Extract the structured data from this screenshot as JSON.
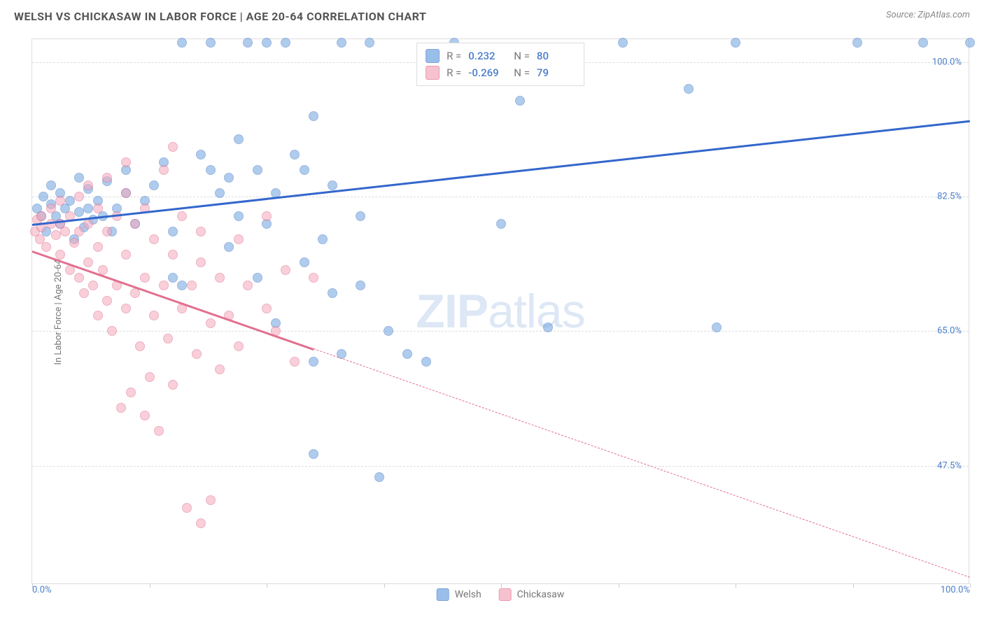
{
  "title": "WELSH VS CHICKASAW IN LABOR FORCE | AGE 20-64 CORRELATION CHART",
  "source": "Source: ZipAtlas.com",
  "y_axis_label": "In Labor Force | Age 20-64",
  "watermark_prefix": "ZIP",
  "watermark_suffix": "atlas",
  "chart": {
    "type": "scatter",
    "background_color": "#ffffff",
    "border_color": "#dddddd",
    "grid_color": "#dddddd",
    "xlim": [
      0,
      100
    ],
    "ylim": [
      32,
      103
    ],
    "y_ticks": [
      {
        "value": 100.0,
        "label": "100.0%"
      },
      {
        "value": 82.5,
        "label": "82.5%"
      },
      {
        "value": 65.0,
        "label": "65.0%"
      },
      {
        "value": 47.5,
        "label": "47.5%"
      }
    ],
    "x_tick_positions": [
      0,
      12.5,
      25,
      37.5,
      50,
      62.5,
      75,
      87.5,
      100
    ],
    "x_tick_labels": [
      {
        "pos": 0,
        "label": "0.0%"
      },
      {
        "pos": 100,
        "label": "100.0%"
      }
    ],
    "point_radius": 7,
    "point_opacity": 0.55,
    "series": [
      {
        "name": "Welsh",
        "color": "#6fa3e0",
        "stroke": "#4a7ec9",
        "line_color": "#3366cc",
        "R": "0.232",
        "N": "80",
        "trend": {
          "x1": 0,
          "y1": 79,
          "x2": 100,
          "y2": 92.5,
          "solid_end_x": 100
        },
        "points": [
          [
            0.5,
            81
          ],
          [
            1,
            80
          ],
          [
            1.2,
            82.5
          ],
          [
            1.5,
            78
          ],
          [
            2,
            81.5
          ],
          [
            2,
            84
          ],
          [
            2.5,
            80
          ],
          [
            3,
            79
          ],
          [
            3,
            83
          ],
          [
            3.5,
            81
          ],
          [
            4,
            82
          ],
          [
            4.5,
            77
          ],
          [
            5,
            80.5
          ],
          [
            5,
            85
          ],
          [
            5.5,
            78.5
          ],
          [
            6,
            81
          ],
          [
            6,
            83.5
          ],
          [
            6.5,
            79.5
          ],
          [
            7,
            82
          ],
          [
            7.5,
            80
          ],
          [
            8,
            84.5
          ],
          [
            8.5,
            78
          ],
          [
            9,
            81
          ],
          [
            10,
            83
          ],
          [
            10,
            86
          ],
          [
            11,
            79
          ],
          [
            12,
            82
          ],
          [
            13,
            84
          ],
          [
            14,
            87
          ],
          [
            15,
            72
          ],
          [
            15,
            78
          ],
          [
            16,
            71
          ],
          [
            16,
            102.5
          ],
          [
            18,
            88
          ],
          [
            19,
            86
          ],
          [
            19,
            102.5
          ],
          [
            20,
            83
          ],
          [
            21,
            76
          ],
          [
            21,
            85
          ],
          [
            22,
            80
          ],
          [
            22,
            90
          ],
          [
            23,
            102.5
          ],
          [
            24,
            72
          ],
          [
            24,
            86
          ],
          [
            25,
            79
          ],
          [
            25,
            102.5
          ],
          [
            26,
            66
          ],
          [
            26,
            83
          ],
          [
            27,
            102.5
          ],
          [
            28,
            88
          ],
          [
            29,
            74
          ],
          [
            29,
            86
          ],
          [
            30,
            49
          ],
          [
            30,
            61
          ],
          [
            30,
            93
          ],
          [
            31,
            77
          ],
          [
            32,
            70
          ],
          [
            32,
            84
          ],
          [
            33,
            62
          ],
          [
            33,
            102.5
          ],
          [
            35,
            71
          ],
          [
            35,
            80
          ],
          [
            36,
            102.5
          ],
          [
            37,
            46
          ],
          [
            38,
            65
          ],
          [
            40,
            62
          ],
          [
            42,
            61
          ],
          [
            45,
            102.5
          ],
          [
            50,
            79
          ],
          [
            52,
            95
          ],
          [
            55,
            65.5
          ],
          [
            63,
            102.5
          ],
          [
            70,
            96.5
          ],
          [
            73,
            65.5
          ],
          [
            75,
            102.5
          ],
          [
            88,
            102.5
          ],
          [
            95,
            102.5
          ],
          [
            100,
            102.5
          ]
        ]
      },
      {
        "name": "Chickasaw",
        "color": "#f5a9bc",
        "stroke": "#e2708f",
        "line_color": "#e2708f",
        "R": "-0.269",
        "N": "79",
        "trend": {
          "x1": 0,
          "y1": 75.5,
          "x2": 100,
          "y2": 33,
          "solid_end_x": 30
        },
        "points": [
          [
            0.3,
            78
          ],
          [
            0.5,
            79.5
          ],
          [
            0.8,
            77
          ],
          [
            1,
            78.5
          ],
          [
            1,
            80
          ],
          [
            1.5,
            76
          ],
          [
            2,
            79
          ],
          [
            2,
            81
          ],
          [
            2.5,
            77.5
          ],
          [
            3,
            75
          ],
          [
            3,
            79
          ],
          [
            3,
            82
          ],
          [
            3.5,
            78
          ],
          [
            4,
            73
          ],
          [
            4,
            80
          ],
          [
            4.5,
            76.5
          ],
          [
            5,
            72
          ],
          [
            5,
            78
          ],
          [
            5,
            82.5
          ],
          [
            5.5,
            70
          ],
          [
            6,
            74
          ],
          [
            6,
            79
          ],
          [
            6,
            84
          ],
          [
            6.5,
            71
          ],
          [
            7,
            67
          ],
          [
            7,
            76
          ],
          [
            7,
            81
          ],
          [
            7.5,
            73
          ],
          [
            8,
            69
          ],
          [
            8,
            78
          ],
          [
            8,
            85
          ],
          [
            8.5,
            65
          ],
          [
            9,
            71
          ],
          [
            9,
            80
          ],
          [
            9.5,
            55
          ],
          [
            10,
            68
          ],
          [
            10,
            75
          ],
          [
            10,
            83
          ],
          [
            10,
            87
          ],
          [
            10.5,
            57
          ],
          [
            11,
            70
          ],
          [
            11,
            79
          ],
          [
            11.5,
            63
          ],
          [
            12,
            54
          ],
          [
            12,
            72
          ],
          [
            12,
            81
          ],
          [
            12.5,
            59
          ],
          [
            13,
            67
          ],
          [
            13,
            77
          ],
          [
            13.5,
            52
          ],
          [
            14,
            71
          ],
          [
            14,
            86
          ],
          [
            14.5,
            64
          ],
          [
            15,
            58
          ],
          [
            15,
            75
          ],
          [
            15,
            89
          ],
          [
            16,
            68
          ],
          [
            16,
            80
          ],
          [
            16.5,
            42
          ],
          [
            17,
            71
          ],
          [
            17.5,
            62
          ],
          [
            18,
            40
          ],
          [
            18,
            74
          ],
          [
            18,
            78
          ],
          [
            19,
            43
          ],
          [
            19,
            66
          ],
          [
            20,
            60
          ],
          [
            20,
            72
          ],
          [
            21,
            67
          ],
          [
            22,
            63
          ],
          [
            22,
            77
          ],
          [
            23,
            71
          ],
          [
            25,
            68
          ],
          [
            25,
            80
          ],
          [
            26,
            65
          ],
          [
            27,
            73
          ],
          [
            28,
            61
          ],
          [
            30,
            72
          ]
        ]
      }
    ]
  }
}
